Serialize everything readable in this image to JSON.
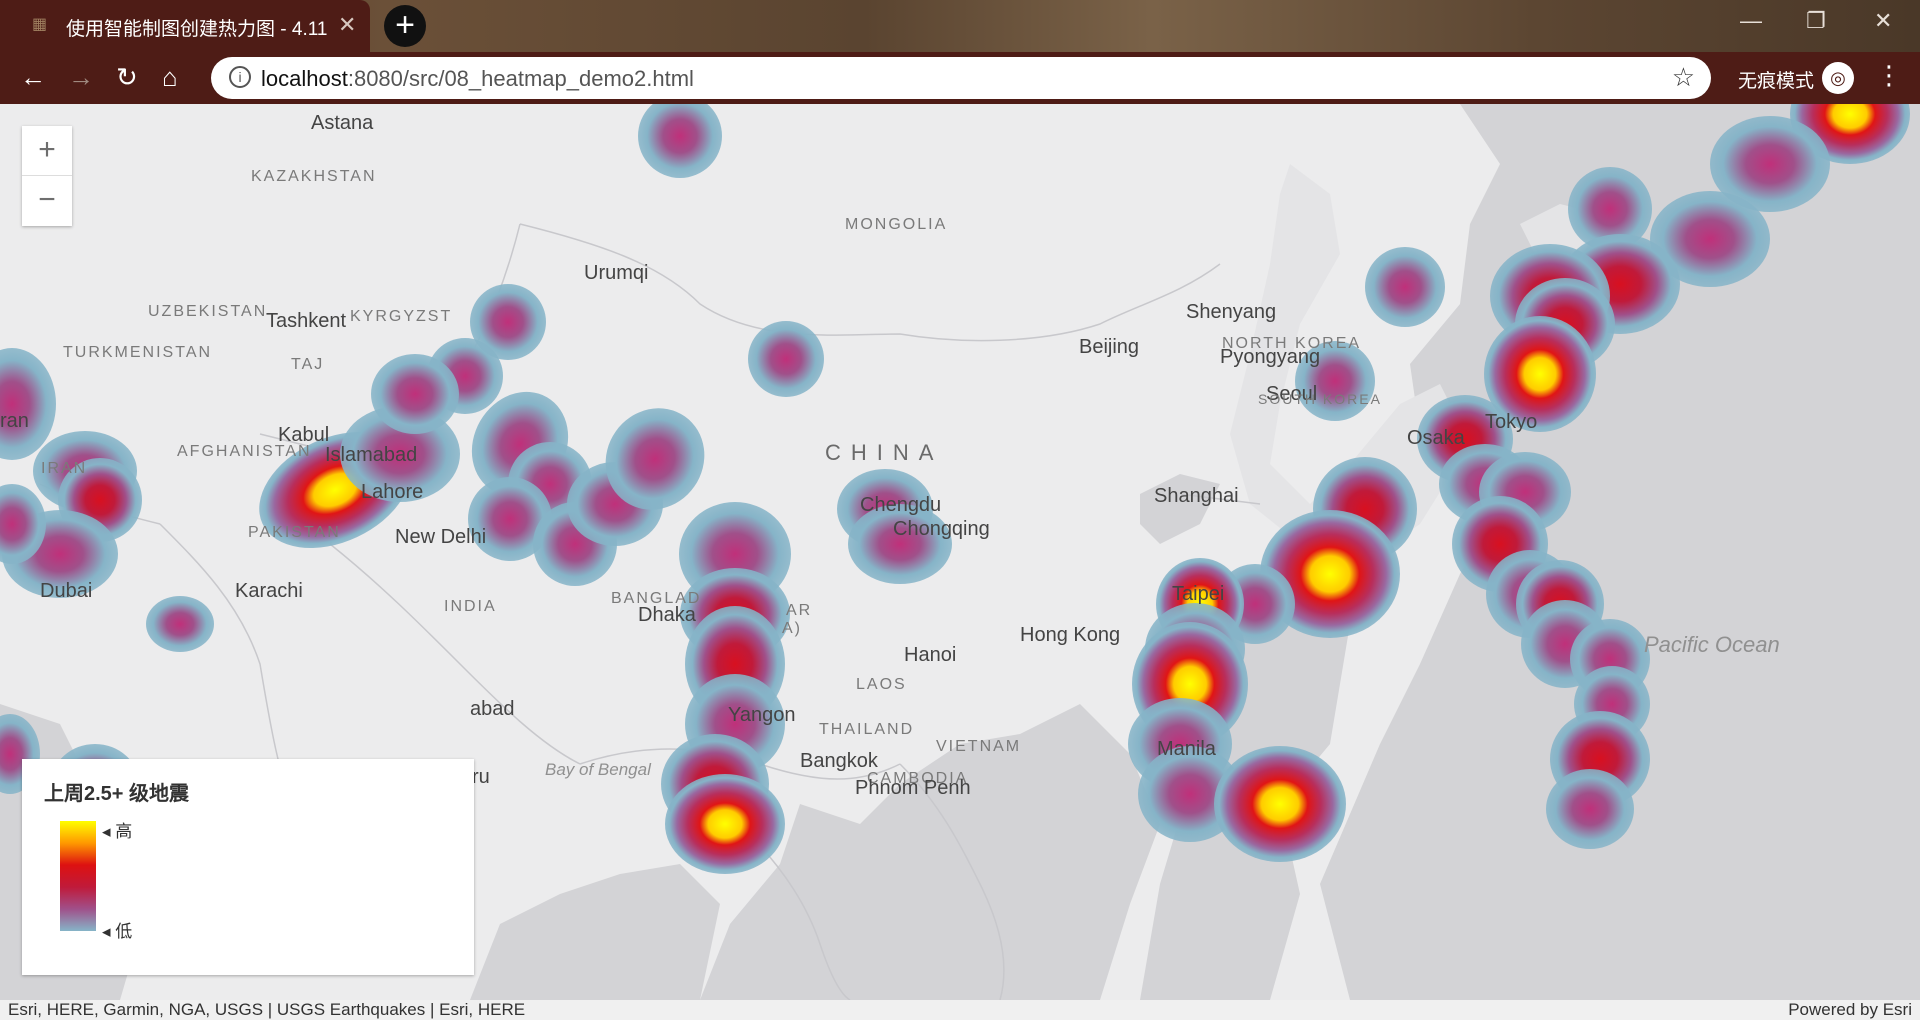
{
  "browser": {
    "tab_title": "使用智能制图创建热力图 - 4.11",
    "url_host": "localhost",
    "url_rest": ":8080/src/08_heatmap_demo2.html",
    "incognito_label": "无痕模式"
  },
  "map": {
    "labels": {
      "astana": "Astana",
      "kazakhstan": "KAZAKHSTAN",
      "mongolia": "MONGOLIA",
      "urumqi": "Urumqi",
      "uzbekistan": "UZBEKISTAN",
      "tashkent": "Tashkent",
      "kyrgyzstan": "KYRGYZST",
      "turkmenistan": "TURKMENISTAN",
      "tajikistan": "TAJ",
      "iran_city": "ran",
      "kabul": "Kabul",
      "afghanistan": "AFGHANISTAN",
      "islamabad": "Islamabad",
      "iran": "IRAN",
      "lahore": "Lahore",
      "pakistan": "PAKISTAN",
      "new_delhi": "New Delhi",
      "dubai": "Dubai",
      "karachi": "Karachi",
      "india": "INDIA",
      "bangladesh": "BANGLAD",
      "dhaka": "Dhaka",
      "myanmar": "AR",
      "myanmar2": "A)",
      "abad": "abad",
      "ru": "ru",
      "bay_of_bengal": "Bay of Bengal",
      "yangon": "Yangon",
      "thailand": "THAILAND",
      "bangkok": "Bangkok",
      "laos": "LAOS",
      "hanoi": "Hanoi",
      "vietnam": "VIETNAM",
      "cambodia": "CAMBODIA",
      "phnom_penh": "Phnom Penh",
      "china": "CHINA",
      "chengdu": "Chengdu",
      "chongqing": "Chongqing",
      "beijing": "Beijing",
      "shenyang": "Shenyang",
      "north_korea": "NORTH KOREA",
      "pyongyang": "Pyongyang",
      "seoul": "Seoul",
      "south_korea": "SOUTH KOREA",
      "shanghai": "Shanghai",
      "osaka": "Osaka",
      "tokyo": "Tokyo",
      "taipei": "Taipei",
      "hong_kong": "Hong Kong",
      "manila": "Manila",
      "pacific_ocean": "Pacific Ocean"
    }
  },
  "legend": {
    "title": "上周2.5+ 级地震",
    "high": "高",
    "low": "低",
    "ramp_colors": [
      "#ffff00",
      "#ff9900",
      "#dd1111",
      "#c01a3a",
      "#a0508a",
      "#86b4c8"
    ]
  },
  "attribution": {
    "left": "Esri, HERE, Garmin, NGA, USGS | USGS Earthquakes | Esri, HERE",
    "right": "Powered by Esri"
  }
}
